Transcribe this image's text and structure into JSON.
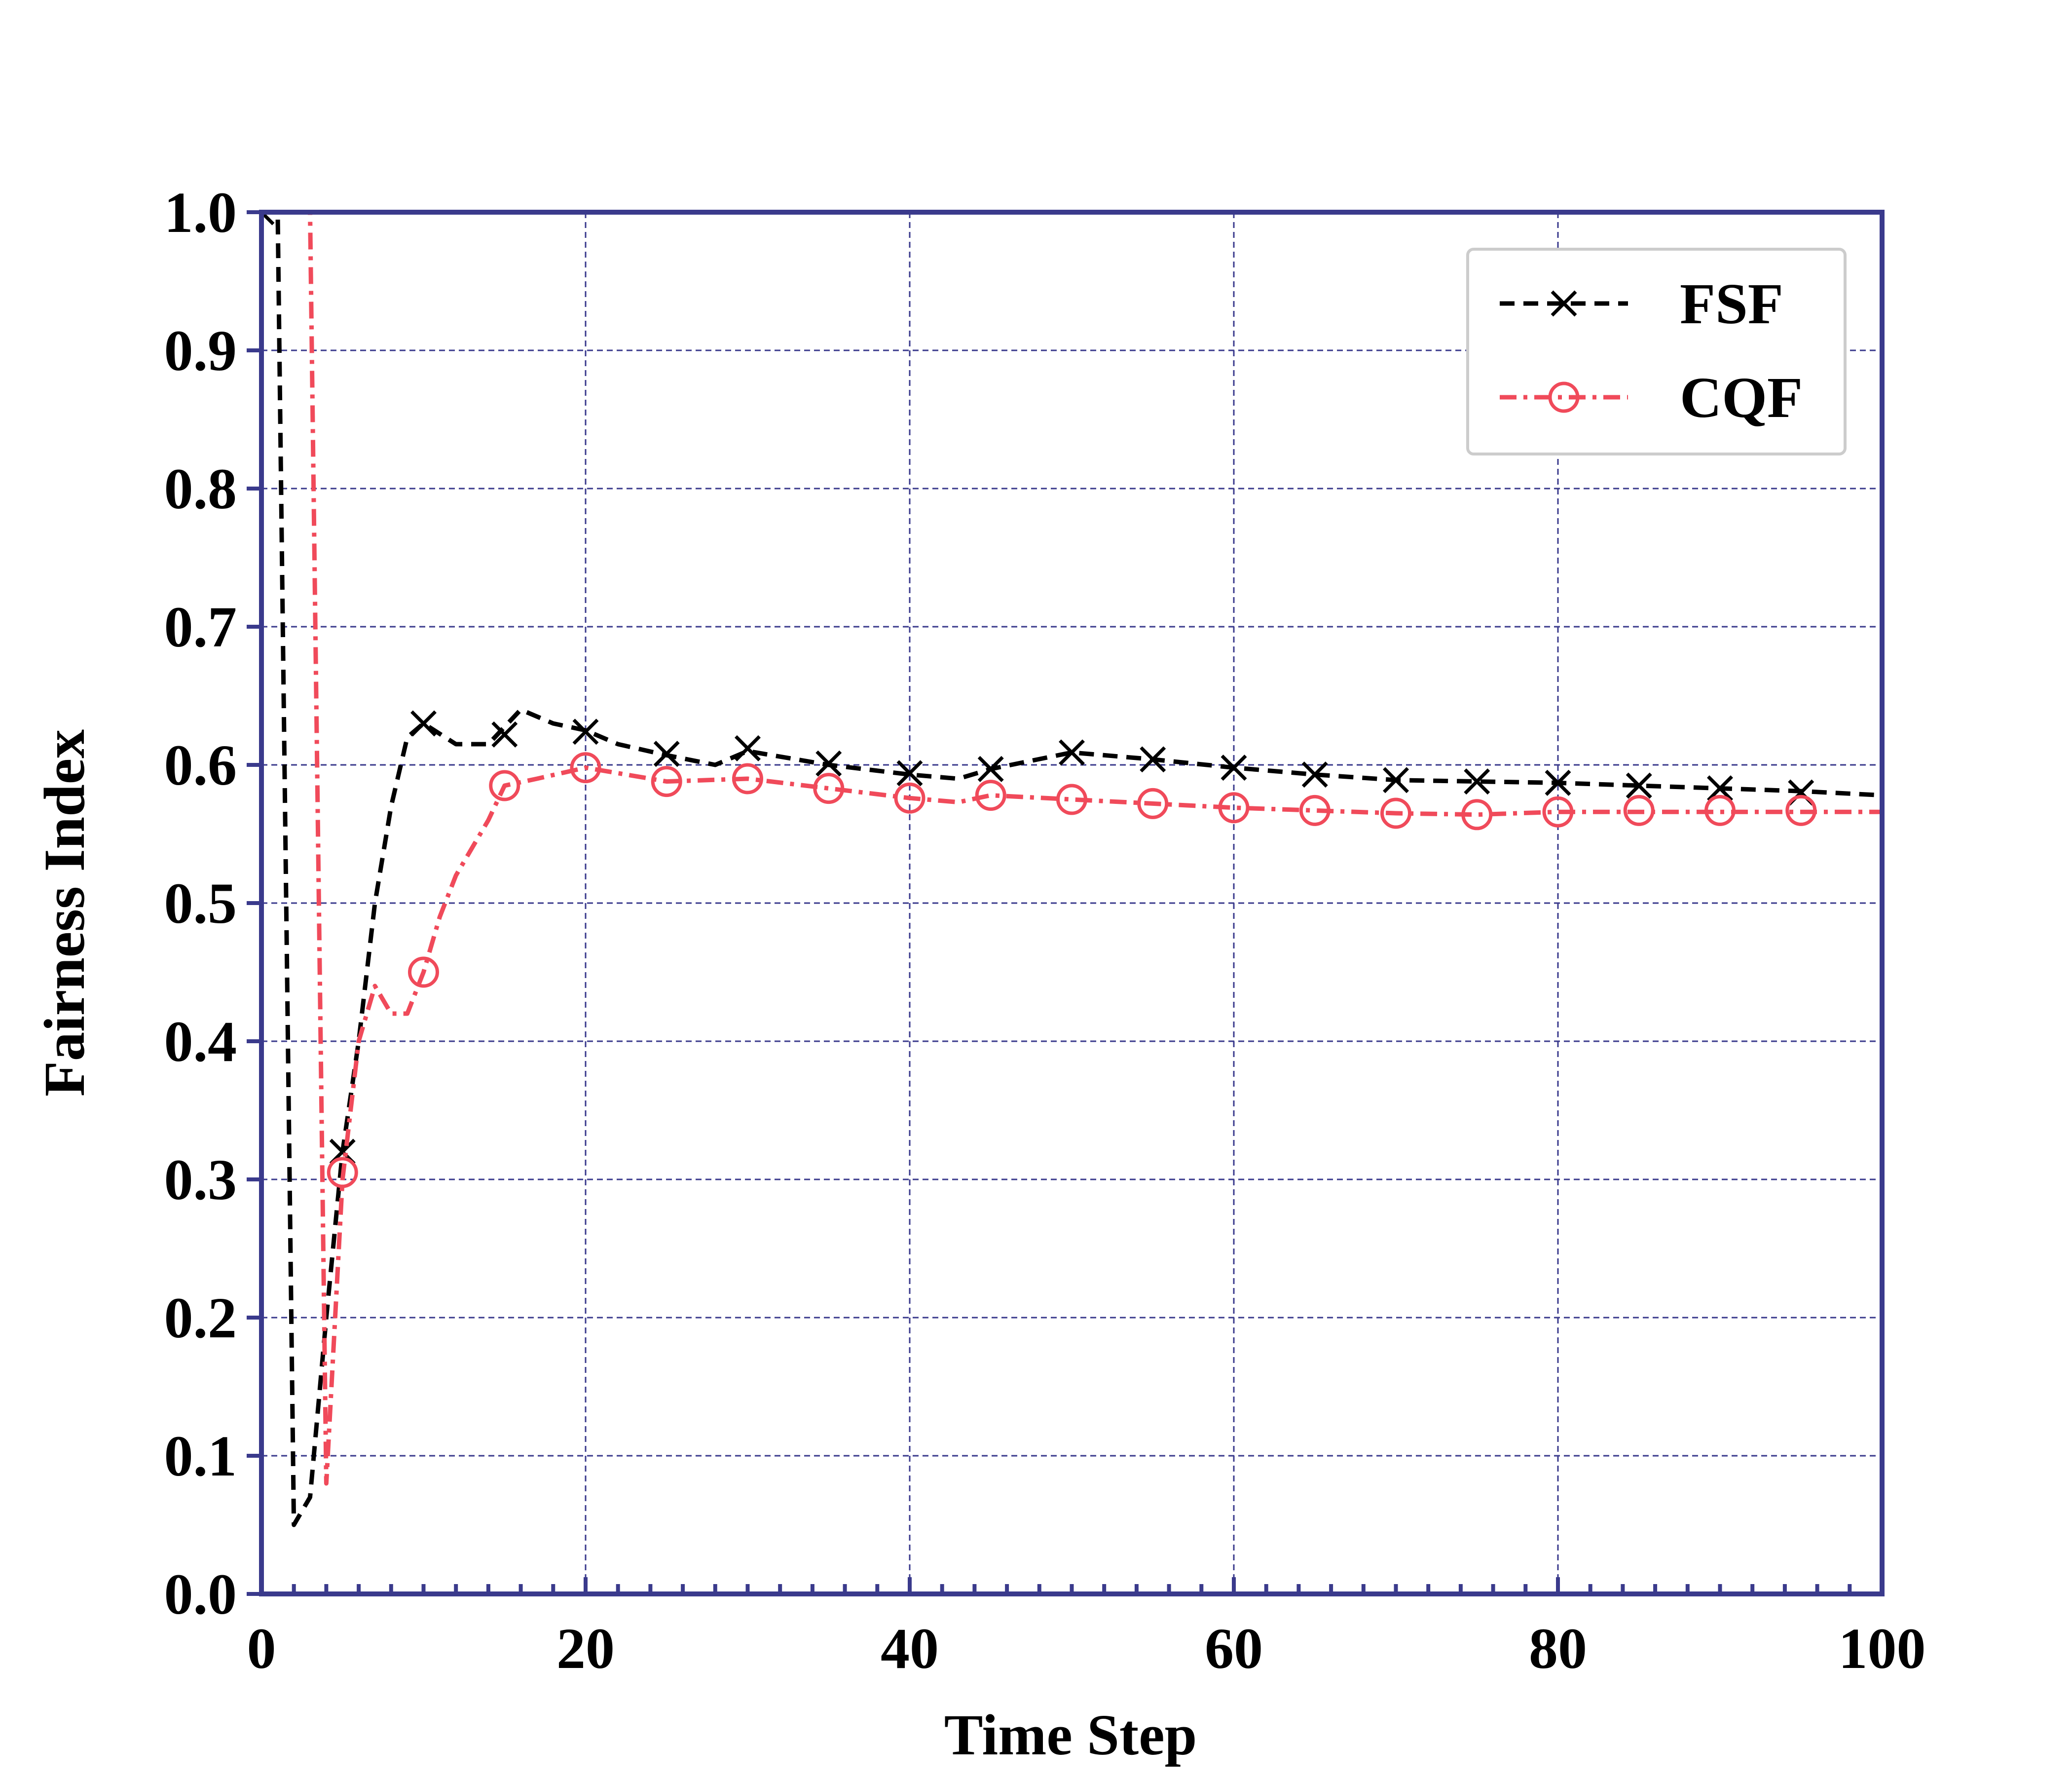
{
  "chart_data": {
    "type": "line",
    "xlabel": "Time Step",
    "ylabel": "Fairness Index",
    "xlim": [
      0,
      100
    ],
    "ylim": [
      0.0,
      1.0
    ],
    "xticks": [
      "0",
      "20",
      "40",
      "60",
      "80",
      "100"
    ],
    "yticks": [
      "0.0",
      "0.1",
      "0.2",
      "0.3",
      "0.4",
      "0.5",
      "0.6",
      "0.7",
      "0.8",
      "0.9",
      "1.0"
    ],
    "grid": true,
    "legend_position": "top-right",
    "colors": {
      "frame": "#3a3a8c",
      "grid": "#3a3a8c"
    },
    "series": [
      {
        "name": "FSF",
        "color": "#000000",
        "line_style": "dashed",
        "marker": "x",
        "line": [
          [
            0,
            1.0
          ],
          [
            1,
            1.0
          ],
          [
            2,
            0.05
          ],
          [
            3,
            0.07
          ],
          [
            4,
            0.2
          ],
          [
            5,
            0.32
          ],
          [
            6,
            0.4
          ],
          [
            7,
            0.5
          ],
          [
            8,
            0.57
          ],
          [
            9,
            0.62
          ],
          [
            10,
            0.63
          ],
          [
            12,
            0.615
          ],
          [
            14,
            0.615
          ],
          [
            16,
            0.64
          ],
          [
            18,
            0.63
          ],
          [
            20,
            0.625
          ],
          [
            22,
            0.615
          ],
          [
            25,
            0.607
          ],
          [
            28,
            0.6
          ],
          [
            30,
            0.61
          ],
          [
            35,
            0.6
          ],
          [
            40,
            0.593
          ],
          [
            43,
            0.59
          ],
          [
            45,
            0.597
          ],
          [
            50,
            0.609
          ],
          [
            55,
            0.604
          ],
          [
            60,
            0.598
          ],
          [
            65,
            0.593
          ],
          [
            70,
            0.589
          ],
          [
            75,
            0.588
          ],
          [
            80,
            0.587
          ],
          [
            85,
            0.585
          ],
          [
            90,
            0.583
          ],
          [
            95,
            0.581
          ],
          [
            100,
            0.578
          ]
        ],
        "markers": [
          [
            0,
            1.0
          ],
          [
            5,
            0.32
          ],
          [
            10,
            0.63
          ],
          [
            15,
            0.622
          ],
          [
            20,
            0.624
          ],
          [
            25,
            0.608
          ],
          [
            30,
            0.612
          ],
          [
            35,
            0.601
          ],
          [
            40,
            0.594
          ],
          [
            45,
            0.597
          ],
          [
            50,
            0.609
          ],
          [
            55,
            0.604
          ],
          [
            60,
            0.598
          ],
          [
            65,
            0.593
          ],
          [
            70,
            0.589
          ],
          [
            75,
            0.588
          ],
          [
            80,
            0.587
          ],
          [
            85,
            0.585
          ],
          [
            90,
            0.583
          ],
          [
            95,
            0.58
          ]
        ]
      },
      {
        "name": "CQF",
        "color": "#f04a5a",
        "line_style": "dashdot",
        "marker": "o",
        "line": [
          [
            0,
            1.0
          ],
          [
            3,
            1.0
          ],
          [
            4,
            0.08
          ],
          [
            5,
            0.3
          ],
          [
            6,
            0.4
          ],
          [
            7,
            0.44
          ],
          [
            8,
            0.42
          ],
          [
            9,
            0.42
          ],
          [
            10,
            0.45
          ],
          [
            11,
            0.49
          ],
          [
            12,
            0.52
          ],
          [
            13,
            0.54
          ],
          [
            14,
            0.56
          ],
          [
            15,
            0.585
          ],
          [
            17,
            0.59
          ],
          [
            20,
            0.598
          ],
          [
            25,
            0.588
          ],
          [
            30,
            0.59
          ],
          [
            35,
            0.583
          ],
          [
            40,
            0.576
          ],
          [
            43,
            0.573
          ],
          [
            45,
            0.578
          ],
          [
            50,
            0.575
          ],
          [
            55,
            0.572
          ],
          [
            60,
            0.569
          ],
          [
            65,
            0.567
          ],
          [
            70,
            0.565
          ],
          [
            75,
            0.564
          ],
          [
            80,
            0.566
          ],
          [
            85,
            0.566
          ],
          [
            90,
            0.566
          ],
          [
            95,
            0.566
          ],
          [
            100,
            0.566
          ]
        ],
        "markers": [
          [
            5,
            0.305
          ],
          [
            10,
            0.45
          ],
          [
            15,
            0.585
          ],
          [
            20,
            0.598
          ],
          [
            25,
            0.588
          ],
          [
            30,
            0.59
          ],
          [
            35,
            0.583
          ],
          [
            40,
            0.576
          ],
          [
            45,
            0.578
          ],
          [
            50,
            0.575
          ],
          [
            55,
            0.572
          ],
          [
            60,
            0.569
          ],
          [
            65,
            0.567
          ],
          [
            70,
            0.565
          ],
          [
            75,
            0.564
          ],
          [
            80,
            0.566
          ],
          [
            85,
            0.567
          ],
          [
            90,
            0.567
          ],
          [
            95,
            0.567
          ]
        ]
      }
    ]
  }
}
